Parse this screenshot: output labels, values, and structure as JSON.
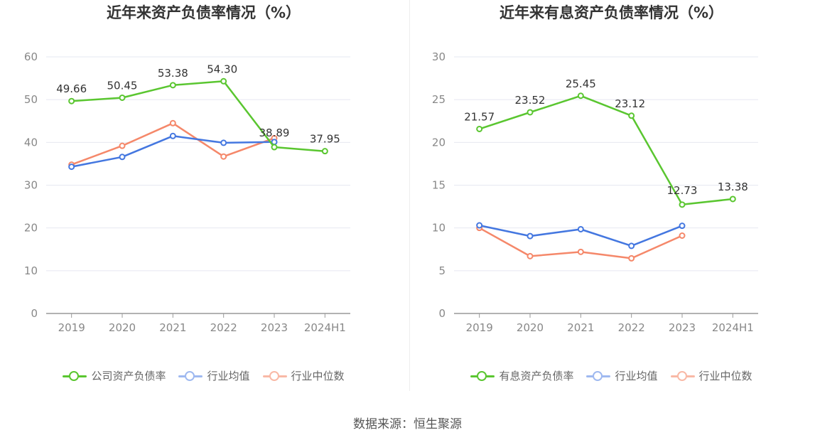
{
  "chart_data": [
    {
      "type": "line",
      "title": "近年来资产负债率情况（%）",
      "categories": [
        "2019",
        "2020",
        "2021",
        "2022",
        "2023",
        "2024H1"
      ],
      "ylim": [
        0,
        60
      ],
      "yticks": [
        "0",
        "10",
        "20",
        "30",
        "40",
        "50",
        "60"
      ],
      "grid": true,
      "legend_position": "bottom",
      "series": [
        {
          "name": "公司资产负债率",
          "color": "#5ac630",
          "labels": true,
          "values": [
            49.66,
            50.45,
            53.38,
            54.3,
            38.89,
            37.95
          ],
          "value_labels": [
            "49.66",
            "50.45",
            "53.38",
            "54.30",
            "38.89",
            "37.95"
          ]
        },
        {
          "name": "行业均值",
          "color": "#4477e0",
          "labels": false,
          "values": [
            34.3,
            36.6,
            41.5,
            39.9,
            40.1,
            null
          ]
        },
        {
          "name": "行业中位数",
          "color": "#f5886a",
          "labels": false,
          "values": [
            34.8,
            39.2,
            44.5,
            36.7,
            41.0,
            null
          ]
        }
      ]
    },
    {
      "type": "line",
      "title": "近年来有息资产负债率情况（%）",
      "categories": [
        "2019",
        "2020",
        "2021",
        "2022",
        "2023",
        "2024H1"
      ],
      "ylim": [
        0,
        30
      ],
      "yticks": [
        "0",
        "5",
        "10",
        "15",
        "20",
        "25",
        "30"
      ],
      "grid": true,
      "legend_position": "bottom",
      "series": [
        {
          "name": "有息资产负债率",
          "color": "#5ac630",
          "labels": true,
          "values": [
            21.57,
            23.52,
            25.45,
            23.12,
            12.73,
            13.38
          ],
          "value_labels": [
            "21.57",
            "23.52",
            "25.45",
            "23.12",
            "12.73",
            "13.38"
          ]
        },
        {
          "name": "行业均值",
          "color": "#4477e0",
          "labels": false,
          "values": [
            10.3,
            9.05,
            9.85,
            7.9,
            10.25,
            null
          ]
        },
        {
          "name": "行业中位数",
          "color": "#f5886a",
          "labels": false,
          "values": [
            10.0,
            6.7,
            7.2,
            6.45,
            9.1,
            null
          ]
        }
      ]
    }
  ],
  "source": "数据来源：恒生聚源"
}
